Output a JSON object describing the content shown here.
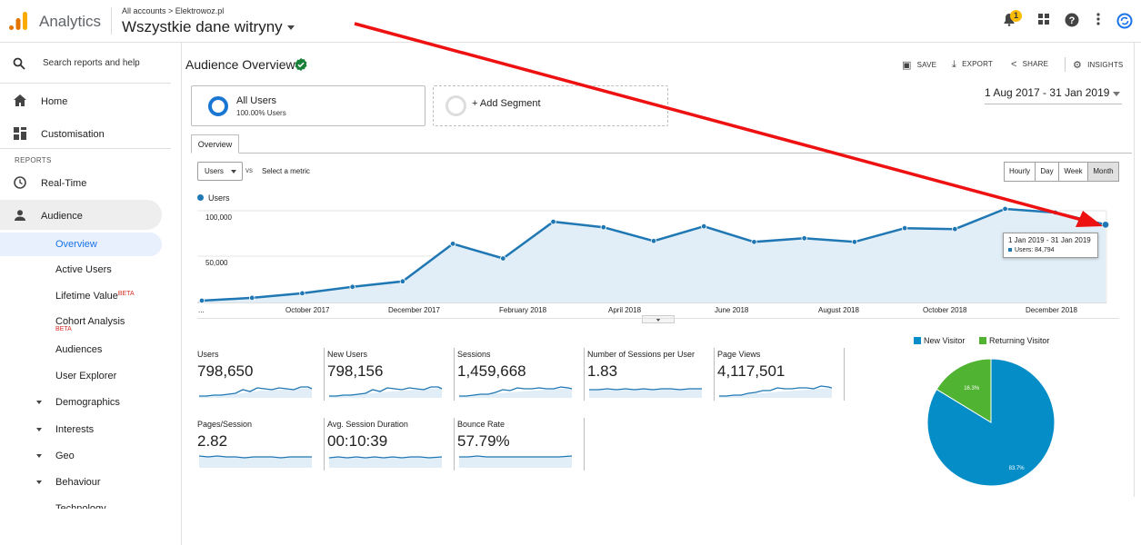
{
  "header": {
    "brand": "Analytics",
    "breadcrumb": "All accounts > Elektrowoz.pl",
    "property": "Wszystkie dane witryny",
    "notification_count": "1"
  },
  "sidebar": {
    "search_label": "Search reports and help",
    "home": "Home",
    "customisation": "Customisation",
    "reports_label": "REPORTS",
    "realtime": "Real-Time",
    "audience": "Audience",
    "sub": {
      "overview": "Overview",
      "active_users": "Active Users",
      "lifetime_value": "Lifetime Value",
      "cohort": "Cohort Analysis",
      "audiences": "Audiences",
      "user_explorer": "User Explorer",
      "demographics": "Demographics",
      "interests": "Interests",
      "geo": "Geo",
      "behaviour": "Behaviour",
      "technology": "Technology"
    },
    "beta": "BETA"
  },
  "main": {
    "title": "Audience Overview",
    "toolbar": {
      "save": "SAVE",
      "export": "EXPORT",
      "share": "SHARE",
      "insights": "INSIGHTS"
    },
    "segment_all": {
      "name": "All Users",
      "pct": "100.00% Users"
    },
    "add_segment": "+ Add Segment",
    "date_range": "1 Aug 2017 - 31 Jan 2019",
    "tab_overview": "Overview",
    "metric_select": "Users",
    "vs": "vs",
    "select_metric": "Select a metric",
    "granularity": [
      "Hourly",
      "Day",
      "Week",
      "Month"
    ],
    "legend_users": "Users",
    "tooltip": {
      "range": "1 Jan 2019 - 31 Jan 2019",
      "value": "Users: 84,794"
    }
  },
  "chart_data": {
    "type": "line",
    "series": [
      {
        "name": "Users",
        "values": [
          2000,
          5000,
          10000,
          17000,
          23000,
          64000,
          48000,
          88000,
          82000,
          67000,
          83000,
          66000,
          70000,
          66000,
          81000,
          80000,
          102000,
          98000,
          84794
        ]
      }
    ],
    "x": [
      "Jul 2017",
      "Aug 2017",
      "Sep 2017",
      "Oct 2017",
      "Nov 2017",
      "Dec 2017",
      "Jan 2018",
      "Feb 2018",
      "Mar 2018",
      "Apr 2018",
      "May 2018",
      "Jun 2018",
      "Jul 2018",
      "Aug 2018",
      "Sep 2018",
      "Oct 2018",
      "Nov 2018",
      "Dec 2018",
      "Jan 2019"
    ],
    "x_tick_labels": [
      "...",
      "October 2017",
      "December 2017",
      "February 2018",
      "April 2018",
      "June 2018",
      "August 2018",
      "October 2018",
      "December 2018"
    ],
    "y_tick_labels": [
      "100,000",
      "50,000"
    ],
    "ylim": [
      0,
      110000
    ],
    "color": "#1f77b4"
  },
  "metrics": [
    {
      "label": "Users",
      "value": "798,650"
    },
    {
      "label": "New Users",
      "value": "798,156"
    },
    {
      "label": "Sessions",
      "value": "1,459,668"
    },
    {
      "label": "Number of Sessions per User",
      "value": "1.83"
    },
    {
      "label": "Page Views",
      "value": "4,117,501"
    },
    {
      "label": "Pages/Session",
      "value": "2.82"
    },
    {
      "label": "Avg. Session Duration",
      "value": "00:10:39"
    },
    {
      "label": "Bounce Rate",
      "value": "57.79%"
    }
  ],
  "pie": {
    "type": "pie",
    "slices": [
      {
        "label": "New Visitor",
        "value": 83.7,
        "text": "83.7%",
        "color": "#058dc7"
      },
      {
        "label": "Returning Visitor",
        "value": 16.3,
        "text": "16.3%",
        "color": "#50b432"
      }
    ]
  }
}
